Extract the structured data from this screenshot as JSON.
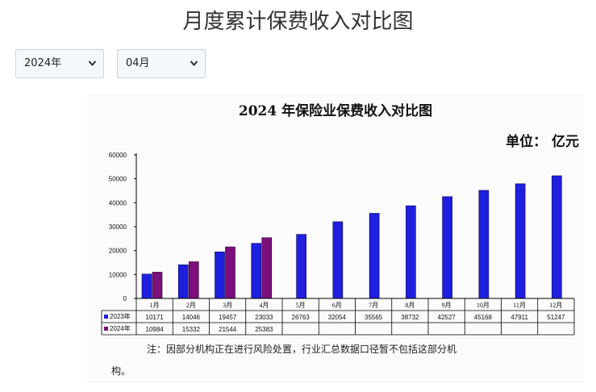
{
  "page": {
    "title": "月度累计保费收入对比图"
  },
  "filters": {
    "year": "2024年",
    "month": "04月",
    "chevron_icon": "chevron-down-icon"
  },
  "chart_data": {
    "type": "bar",
    "title": "2024 年保险业保费收入对比图",
    "unit": "单位：  亿元",
    "categories": [
      "1月",
      "2月",
      "3月",
      "4月",
      "5月",
      "6月",
      "7月",
      "8月",
      "9月",
      "10月",
      "11月",
      "12月"
    ],
    "series": [
      {
        "name": "2023年",
        "color": "#1f1fe0",
        "values": [
          10171,
          14046,
          19457,
          23033,
          26763,
          32054,
          35565,
          38732,
          42527,
          45168,
          47911,
          51247
        ]
      },
      {
        "name": "2024年",
        "color": "#7b0f7b",
        "values": [
          10984,
          15332,
          21544,
          25383,
          null,
          null,
          null,
          null,
          null,
          null,
          null,
          null
        ]
      }
    ],
    "yticks": [
      "60000",
      "50000",
      "40000",
      "30000",
      "20000",
      "10000",
      "0"
    ],
    "ylim": [
      0,
      60000
    ],
    "legend_placement": "data-table",
    "note_line1": "注：因部分机构正在进行风险处置，行业汇总数据口径暂不包括这部分机",
    "note_line2": "构。"
  }
}
